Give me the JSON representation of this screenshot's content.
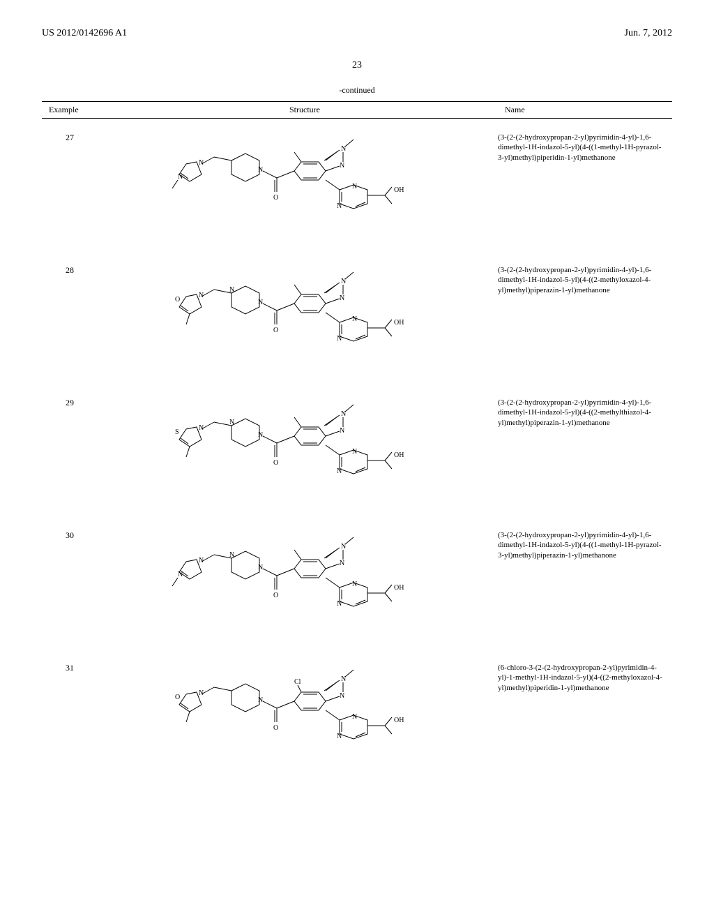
{
  "header": {
    "left": "US 2012/0142696 A1",
    "right": "Jun. 7, 2012"
  },
  "page_number": "23",
  "continued_label": "-continued",
  "table": {
    "columns": {
      "example": "Example",
      "structure": "Structure",
      "name": "Name"
    },
    "rows": [
      {
        "example": "27",
        "name": "(3-(2-(2-hydroxypropan-2-yl)pyrimidin-4-yl)-1,6-dimethyl-1H-indazol-5-yl)(4-((1-methyl-1H-pyrazol-3-yl)methyl)piperidin-1-yl)methanone",
        "structure_variant": "pyrazol-piperidin"
      },
      {
        "example": "28",
        "name": "(3-(2-(2-hydroxypropan-2-yl)pyrimidin-4-yl)-1,6-dimethyl-1H-indazol-5-yl)(4-((2-methyloxazol-4-yl)methyl)piperazin-1-yl)methanone",
        "structure_variant": "oxazol-piperazin"
      },
      {
        "example": "29",
        "name": "(3-(2-(2-hydroxypropan-2-yl)pyrimidin-4-yl)-1,6-dimethyl-1H-indazol-5-yl)(4-((2-methylthiazol-4-yl)methyl)piperazin-1-yl)methanone",
        "structure_variant": "thiazol-piperazin"
      },
      {
        "example": "30",
        "name": "(3-(2-(2-hydroxypropan-2-yl)pyrimidin-4-yl)-1,6-dimethyl-1H-indazol-5-yl)(4-((1-methyl-1H-pyrazol-3-yl)methyl)piperazin-1-yl)methanone",
        "structure_variant": "pyrazol-piperazin"
      },
      {
        "example": "31",
        "name": "(6-chloro-3-(2-(2-hydroxypropan-2-yl)pyrimidin-4-yl)-1-methyl-1H-indazol-5-yl)(4-((2-methyloxazol-4-yl)methyl)piperidin-1-yl)methanone",
        "structure_variant": "chloro-oxazol-piperidin"
      }
    ]
  },
  "structure_style": {
    "stroke_color": "#000000",
    "stroke_width": 1,
    "label_fontsize": 10,
    "label_color": "#000000"
  }
}
